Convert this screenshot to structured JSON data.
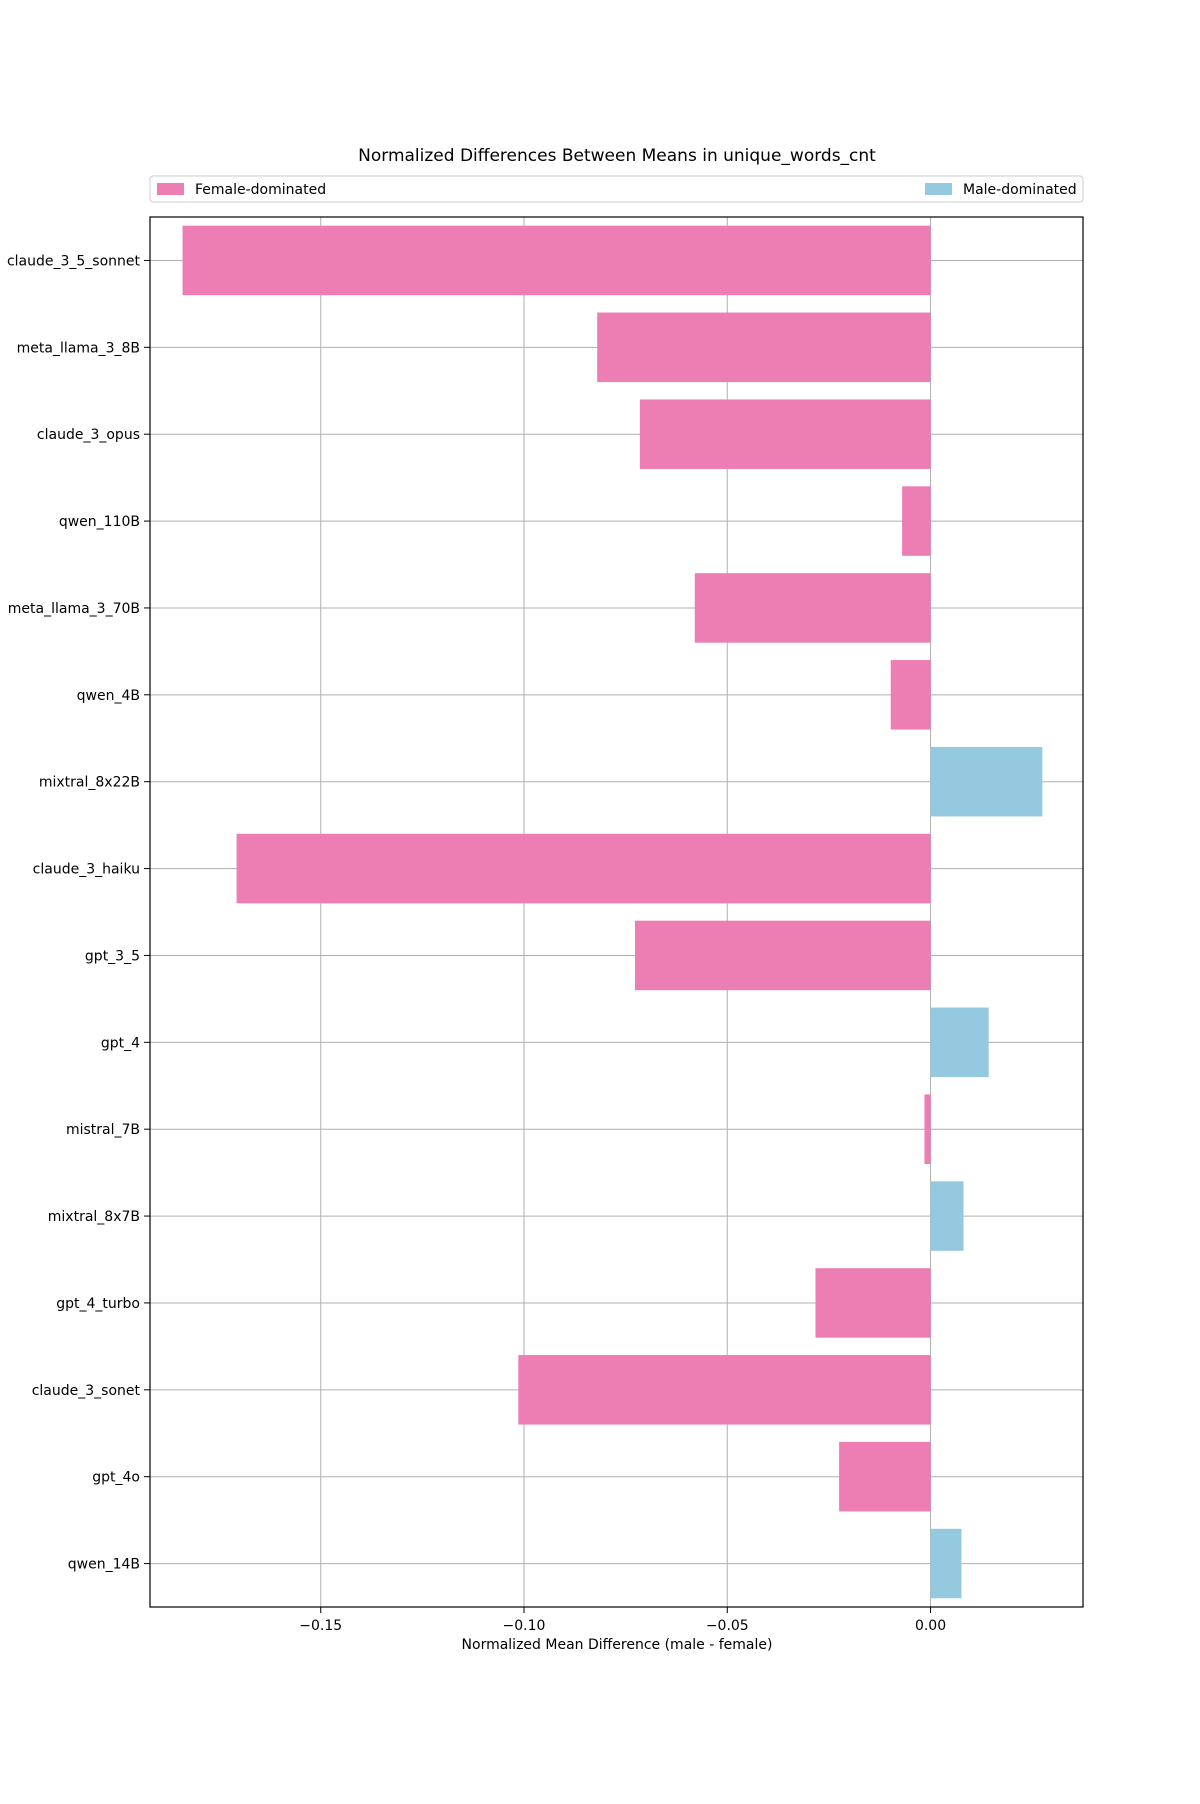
{
  "chart_data": {
    "type": "bar",
    "orientation": "horizontal",
    "title": "Normalized Differences Between Means in unique_words_cnt",
    "xlabel": "Normalized Mean Difference (male - female)",
    "ylabel": "",
    "xlim": [
      -0.192,
      0.0375
    ],
    "xticks": [
      -0.15,
      -0.1,
      -0.05,
      0.0
    ],
    "xtick_labels": [
      "−0.15",
      "−0.10",
      "−0.05",
      "0.00"
    ],
    "grid": true,
    "legend": {
      "placement": "top",
      "entries": [
        {
          "label": "Female-dominated",
          "color": "#ec7eb3"
        },
        {
          "label": "Male-dominated",
          "color": "#94c9df"
        }
      ]
    },
    "colors": {
      "negative": "#ec7eb3",
      "positive": "#94c9df",
      "grid": "#b0b0b0",
      "axes": "#000000"
    },
    "categories": [
      "claude_3_5_sonnet",
      "meta_llama_3_8B",
      "claude_3_opus",
      "qwen_110B",
      "meta_llama_3_70B",
      "qwen_4B",
      "mixtral_8x22B",
      "claude_3_haiku",
      "gpt_3_5",
      "gpt_4",
      "mistral_7B",
      "mixtral_8x7B",
      "gpt_4_turbo",
      "claude_3_sonet",
      "gpt_4o",
      "qwen_14B"
    ],
    "values": [
      -0.184,
      -0.082,
      -0.0715,
      -0.007,
      -0.058,
      -0.0098,
      0.0275,
      -0.1707,
      -0.0727,
      0.0143,
      -0.0015,
      0.0081,
      -0.0283,
      -0.1014,
      -0.0225,
      0.0076
    ]
  }
}
